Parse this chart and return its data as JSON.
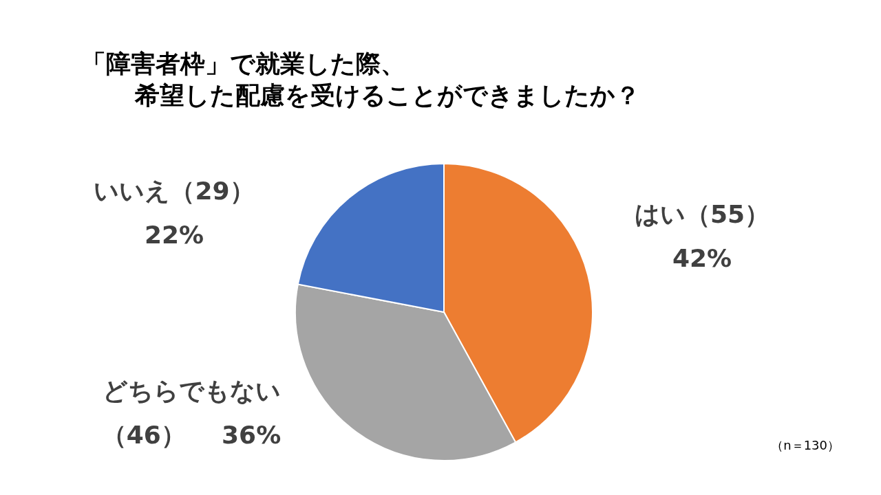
{
  "chart_data": {
    "type": "pie",
    "title": "「障害者枠」で就業した際、",
    "subtitle": "希望した配慮を受けることができましたか？",
    "categories": [
      "はい（55）",
      "どちらでもない（46）",
      "いいえ（29）"
    ],
    "values": [
      42,
      36,
      22
    ],
    "colors": [
      "#ed7d31",
      "#a5a5a5",
      "#4472c4"
    ],
    "value_labels": [
      "42%",
      "36%",
      "22%"
    ],
    "annotations": [
      "（n＝130）"
    ]
  }
}
